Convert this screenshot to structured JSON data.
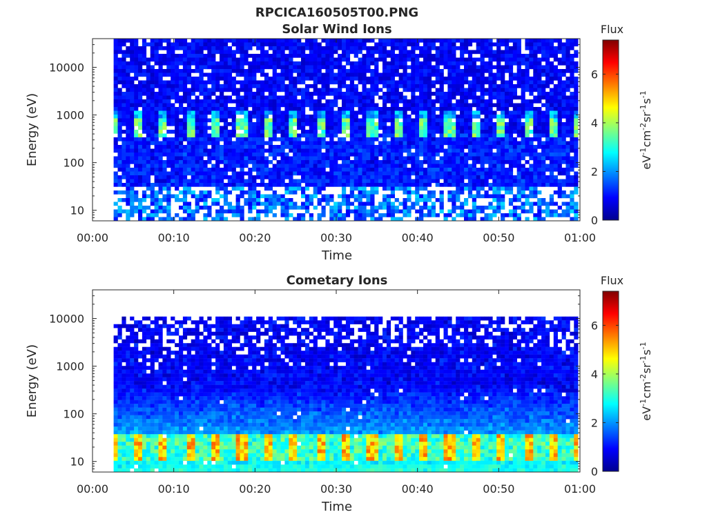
{
  "figure_title": "RPCICA160505T00.PNG",
  "colorbar": {
    "label": "Flux",
    "unit_base": "eV",
    "unit_parts": [
      {
        "t": "eV",
        "sup": "-1"
      },
      {
        "t": "cm",
        "sup": "-2"
      },
      {
        "t": "sr",
        "sup": "-1"
      },
      {
        "t": "s",
        "sup": "-1"
      }
    ],
    "range": [
      0,
      7.4
    ],
    "ticks": [
      "0",
      "2",
      "4",
      "6"
    ],
    "colormap": "jet"
  },
  "chart_data": [
    {
      "type": "heatmap",
      "title": "Solar Wind Ions",
      "xlabel": "Time",
      "ylabel": "Energy (eV)",
      "x_ticks": [
        "00:00",
        "00:10",
        "00:20",
        "00:30",
        "00:40",
        "00:50",
        "01:00"
      ],
      "xlim_minutes": [
        0,
        60
      ],
      "y_ticks": [
        "10",
        "100",
        "1000",
        "10000"
      ],
      "ylim_ev": [
        6,
        40000
      ],
      "yscale": "log",
      "data_start_minute": 2.6,
      "data_ymax_ev": 40000,
      "notes": "Background flux ~0.5-1.5 across energies; periodic peaks ~3-4 near 600 eV every ~3.2 min; sparse high flux below 30 eV."
    },
    {
      "type": "heatmap",
      "title": "Cometary Ions",
      "xlabel": "Time",
      "ylabel": "Energy (eV)",
      "x_ticks": [
        "00:00",
        "00:10",
        "00:20",
        "00:30",
        "00:40",
        "00:50",
        "01:00"
      ],
      "xlim_minutes": [
        0,
        60
      ],
      "y_ticks": [
        "10",
        "100",
        "1000",
        "10000"
      ],
      "ylim_ev": [
        6,
        40000
      ],
      "yscale": "log",
      "data_start_minute": 2.6,
      "data_ymax_ev": 11000,
      "notes": "Flux increases toward low energies; periodic peaks ~5-6 between 10 and 30 eV every ~3.2 min; isolated high-energy blips near 00:12 and 00:54."
    }
  ]
}
